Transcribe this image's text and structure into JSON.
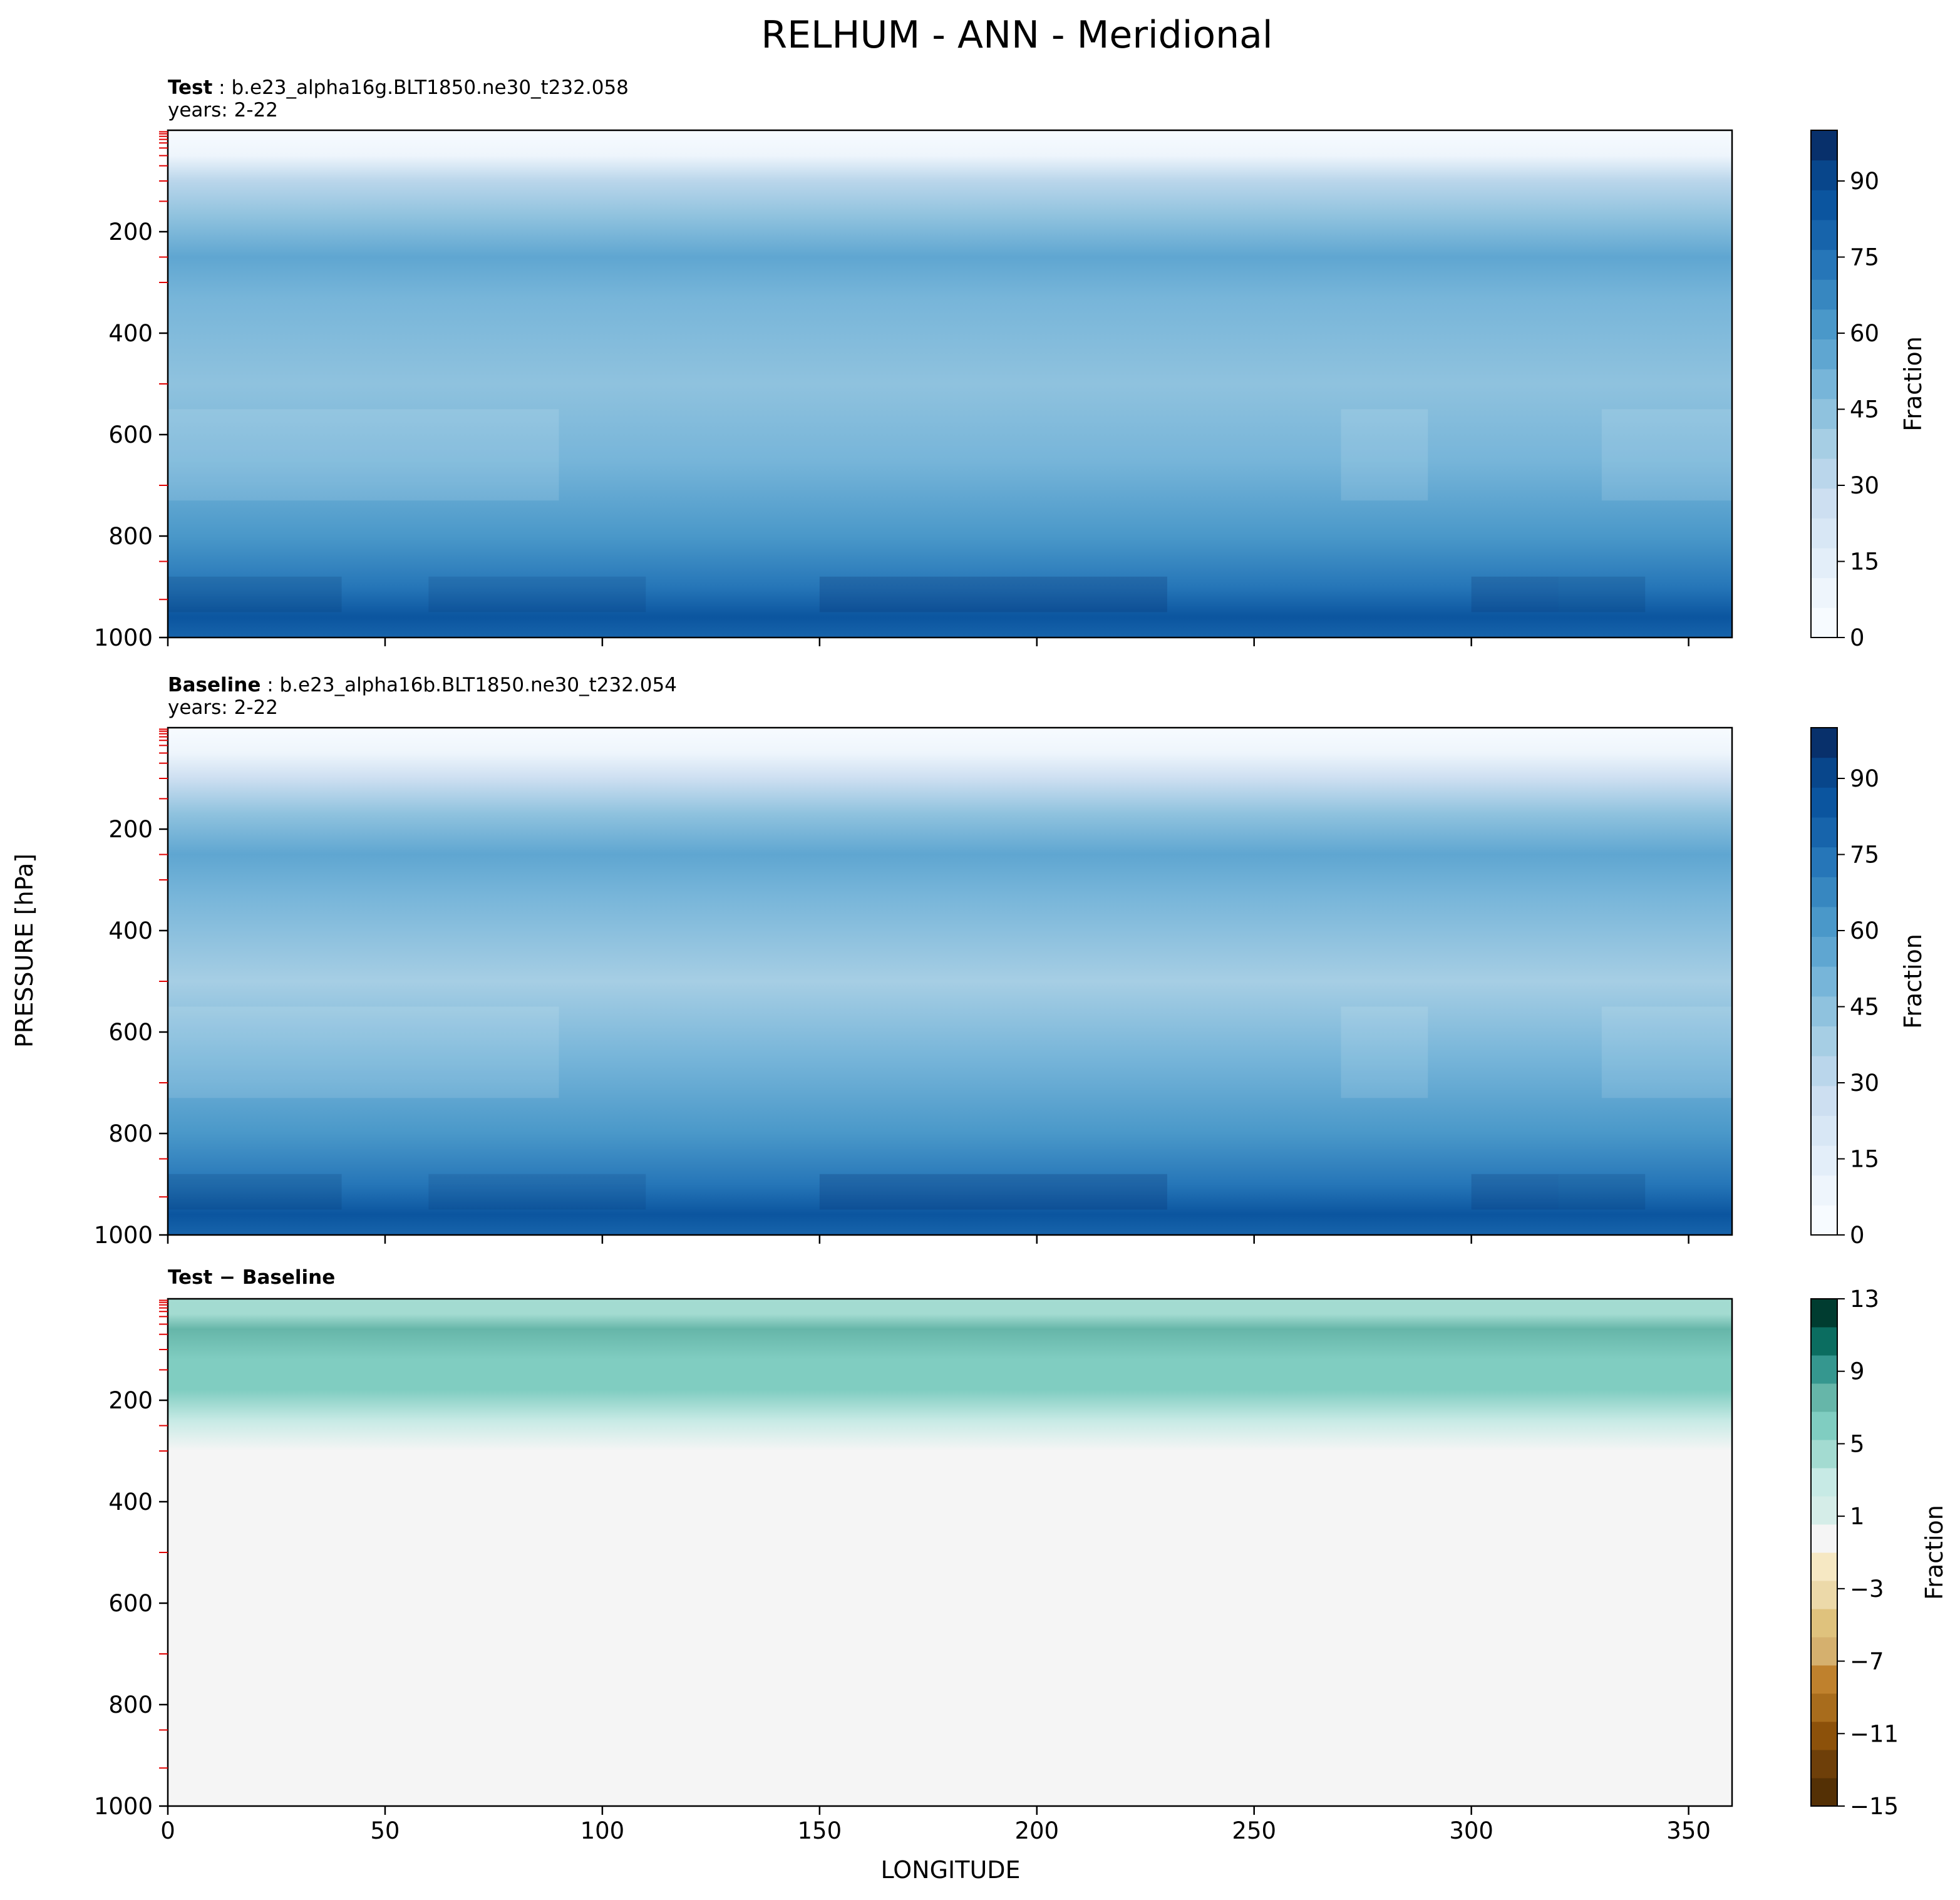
{
  "figure": {
    "title": "RELHUM - ANN - Meridional",
    "ylabel": "PRESSURE [hPa]",
    "xlabel": "LONGITUDE"
  },
  "chart_data": [
    {
      "type": "heatmap",
      "name": "test",
      "subtitle_bold": "Test",
      "subtitle_rest": ": b.e23_alpha16g.BLT1850.ne30_t232.058",
      "years": "years: 2-22",
      "x_ticks": [
        "0",
        "50",
        "100",
        "150",
        "200",
        "250",
        "300",
        "350"
      ],
      "y_ticks": [
        "200",
        "400",
        "600",
        "800",
        "1000"
      ],
      "xlim": [
        0,
        360
      ],
      "ylim": [
        1000,
        0
      ],
      "x_tick_labels_shown": false,
      "colorbar": {
        "label": "Fraction",
        "ticks": [
          "0",
          "15",
          "30",
          "45",
          "60",
          "75",
          "90"
        ],
        "range": [
          0,
          100
        ],
        "colormap": "Blues",
        "colors": [
          "#f7fbff",
          "#eef5fc",
          "#e3eef9",
          "#d8e7f5",
          "#cddff1",
          "#bad6eb",
          "#a6cee4",
          "#8fc2de",
          "#77b5d9",
          "#5fa6d1",
          "#4a98c9",
          "#3787c0",
          "#2676b8",
          "#1764ab",
          "#0b559f",
          "#08468b",
          "#08306b"
        ]
      },
      "approx_field": {
        "description_levels": "relative humidity (%) bands by pressure",
        "profile": [
          {
            "p": 0,
            "rh": 2
          },
          {
            "p": 50,
            "rh": 10
          },
          {
            "p": 100,
            "rh": 30
          },
          {
            "p": 170,
            "rh": 45
          },
          {
            "p": 250,
            "rh": 58
          },
          {
            "p": 330,
            "rh": 52
          },
          {
            "p": 500,
            "rh": 42
          },
          {
            "p": 650,
            "rh": 50
          },
          {
            "p": 800,
            "rh": 62
          },
          {
            "p": 900,
            "rh": 75
          },
          {
            "p": 960,
            "rh": 85
          },
          {
            "p": 1000,
            "rh": 82
          }
        ]
      }
    },
    {
      "type": "heatmap",
      "name": "baseline",
      "subtitle_bold": "Baseline",
      "subtitle_rest": ": b.e23_alpha16b.BLT1850.ne30_t232.054",
      "years": "years: 2-22",
      "x_ticks": [
        "0",
        "50",
        "100",
        "150",
        "200",
        "250",
        "300",
        "350"
      ],
      "y_ticks": [
        "200",
        "400",
        "600",
        "800",
        "1000"
      ],
      "xlim": [
        0,
        360
      ],
      "ylim": [
        1000,
        0
      ],
      "x_tick_labels_shown": false,
      "colorbar": {
        "label": "Fraction",
        "ticks": [
          "0",
          "15",
          "30",
          "45",
          "60",
          "75",
          "90"
        ],
        "range": [
          0,
          100
        ],
        "colormap": "Blues",
        "colors": [
          "#f7fbff",
          "#eef5fc",
          "#e3eef9",
          "#d8e7f5",
          "#cddff1",
          "#bad6eb",
          "#a6cee4",
          "#8fc2de",
          "#77b5d9",
          "#5fa6d1",
          "#4a98c9",
          "#3787c0",
          "#2676b8",
          "#1764ab",
          "#0b559f",
          "#08468b",
          "#08306b"
        ]
      },
      "approx_field": {
        "description_levels": "relative humidity (%) bands by pressure",
        "profile": [
          {
            "p": 0,
            "rh": 2
          },
          {
            "p": 50,
            "rh": 9
          },
          {
            "p": 100,
            "rh": 28
          },
          {
            "p": 170,
            "rh": 43
          },
          {
            "p": 250,
            "rh": 56
          },
          {
            "p": 330,
            "rh": 51
          },
          {
            "p": 500,
            "rh": 41
          },
          {
            "p": 650,
            "rh": 50
          },
          {
            "p": 800,
            "rh": 62
          },
          {
            "p": 900,
            "rh": 75
          },
          {
            "p": 960,
            "rh": 85
          },
          {
            "p": 1000,
            "rh": 82
          }
        ]
      }
    },
    {
      "type": "heatmap",
      "name": "difference",
      "subtitle_bold": "Test − Baseline",
      "subtitle_rest": "",
      "years": "",
      "x_ticks": [
        "0",
        "50",
        "100",
        "150",
        "200",
        "250",
        "300",
        "350"
      ],
      "y_ticks": [
        "200",
        "400",
        "600",
        "800",
        "1000"
      ],
      "xlim": [
        0,
        360
      ],
      "ylim": [
        1000,
        0
      ],
      "x_tick_labels_shown": true,
      "colorbar": {
        "label": "Fraction",
        "ticks": [
          "13",
          "9",
          "5",
          "1",
          "−3",
          "−7",
          "−11",
          "−15"
        ],
        "range": [
          -15,
          13
        ],
        "colormap": "BrBG",
        "colors": [
          "#543005",
          "#6e3f09",
          "#8c510a",
          "#a86c1c",
          "#bf812d",
          "#d5b06e",
          "#dfc27d",
          "#ecd9a9",
          "#f6e8c3",
          "#f5f5f5",
          "#d5ede8",
          "#c7eae5",
          "#a3dbd1",
          "#80cdc1",
          "#66b6a9",
          "#35978f",
          "#0b6d60",
          "#003c30"
        ]
      },
      "approx_field": {
        "description_levels": "difference (%) by pressure",
        "profile": [
          {
            "p": 0,
            "rh": 4
          },
          {
            "p": 30,
            "rh": 4
          },
          {
            "p": 60,
            "rh": 7
          },
          {
            "p": 120,
            "rh": 6
          },
          {
            "p": 180,
            "rh": 5.5
          },
          {
            "p": 240,
            "rh": 3
          },
          {
            "p": 300,
            "rh": 0
          },
          {
            "p": 1000,
            "rh": 0
          }
        ]
      }
    }
  ]
}
